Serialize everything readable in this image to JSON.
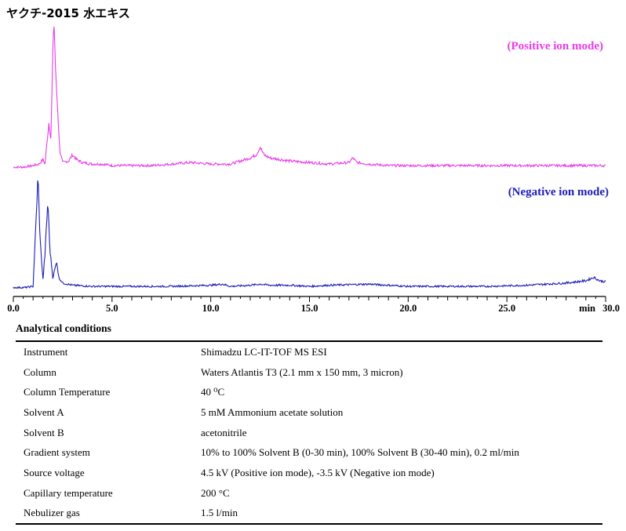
{
  "title": "ヤクチ-2015 水エキス",
  "chart_data": {
    "type": "line",
    "x_unit_label": "min",
    "xlim": [
      0,
      30
    ],
    "x_ticks": [
      "0.0",
      "5.0",
      "10.0",
      "15.0",
      "20.0",
      "25.0",
      "30.0"
    ],
    "series": [
      {
        "name": "(Positive ion mode)",
        "color": "#e83ce8",
        "points": [
          [
            0.0,
            1
          ],
          [
            0.5,
            1
          ],
          [
            1.0,
            2
          ],
          [
            1.3,
            3
          ],
          [
            1.5,
            6
          ],
          [
            1.6,
            3
          ],
          [
            1.8,
            30
          ],
          [
            1.9,
            20
          ],
          [
            2.05,
            100
          ],
          [
            2.15,
            60
          ],
          [
            2.25,
            38
          ],
          [
            2.35,
            12
          ],
          [
            2.5,
            4
          ],
          [
            2.8,
            5
          ],
          [
            3.0,
            9
          ],
          [
            3.2,
            6
          ],
          [
            3.5,
            4
          ],
          [
            4.0,
            3
          ],
          [
            4.5,
            3
          ],
          [
            5.0,
            2
          ],
          [
            6.0,
            2
          ],
          [
            7.0,
            2
          ],
          [
            8.0,
            3
          ],
          [
            9.0,
            4
          ],
          [
            10.0,
            3
          ],
          [
            11.0,
            3
          ],
          [
            11.5,
            5
          ],
          [
            12.0,
            7
          ],
          [
            12.3,
            9
          ],
          [
            12.5,
            14
          ],
          [
            12.7,
            9
          ],
          [
            13.0,
            7
          ],
          [
            14.0,
            5
          ],
          [
            15.0,
            4
          ],
          [
            16.0,
            3
          ],
          [
            17.0,
            4
          ],
          [
            17.2,
            7
          ],
          [
            17.4,
            4
          ],
          [
            18.0,
            3
          ],
          [
            19.0,
            2
          ],
          [
            20.0,
            2
          ],
          [
            22.0,
            2
          ],
          [
            24.0,
            2
          ],
          [
            26.0,
            2
          ],
          [
            28.0,
            2
          ],
          [
            30.0,
            2
          ]
        ]
      },
      {
        "name": "(Negative ion mode)",
        "color": "#1c1cb8",
        "points": [
          [
            0.0,
            1
          ],
          [
            0.6,
            1
          ],
          [
            1.0,
            2
          ],
          [
            1.15,
            60
          ],
          [
            1.25,
            100
          ],
          [
            1.35,
            45
          ],
          [
            1.5,
            8
          ],
          [
            1.6,
            30
          ],
          [
            1.75,
            78
          ],
          [
            1.85,
            35
          ],
          [
            2.0,
            10
          ],
          [
            2.2,
            24
          ],
          [
            2.3,
            10
          ],
          [
            2.5,
            5
          ],
          [
            3.0,
            3
          ],
          [
            4.0,
            2
          ],
          [
            5.0,
            2
          ],
          [
            6.0,
            2
          ],
          [
            8.0,
            2
          ],
          [
            10.0,
            3
          ],
          [
            10.6,
            4
          ],
          [
            11.0,
            2
          ],
          [
            12.0,
            3
          ],
          [
            12.5,
            4
          ],
          [
            13.0,
            3
          ],
          [
            14.0,
            3
          ],
          [
            15.0,
            2
          ],
          [
            16.0,
            3
          ],
          [
            18.0,
            4
          ],
          [
            20.0,
            2
          ],
          [
            22.0,
            2
          ],
          [
            24.0,
            2
          ],
          [
            26.0,
            3
          ],
          [
            28.0,
            5
          ],
          [
            29.0,
            7
          ],
          [
            29.4,
            10
          ],
          [
            29.7,
            7
          ],
          [
            30.0,
            6
          ]
        ]
      }
    ]
  },
  "conditions": {
    "heading": "Analytical conditions",
    "rows": [
      {
        "label": "Instrument",
        "value": "Shimadzu LC-IT-TOF MS ESI"
      },
      {
        "label": "Column",
        "value": "Waters Atlantis T3 (2.1 mm x 150 mm, 3 micron)"
      },
      {
        "label": "Column Temperature",
        "value": "40 ⁰C"
      },
      {
        "label": "Solvent A",
        "value": "5 mM Ammonium acetate solution"
      },
      {
        "label": "Solvent B",
        "value": "acetonitrile"
      },
      {
        "label": "Gradient system",
        "value": "10% to 100% Solvent B (0-30 min), 100% Solvent B (30-40 min), 0.2 ml/min"
      },
      {
        "label": "Source voltage",
        "value": "4.5 kV (Positive ion mode), -3.5 kV (Negative ion mode)"
      },
      {
        "label": "Capillary temperature",
        "value": "200 °C"
      },
      {
        "label": "Nebulizer gas",
        "value": "1.5 l/min"
      }
    ]
  }
}
